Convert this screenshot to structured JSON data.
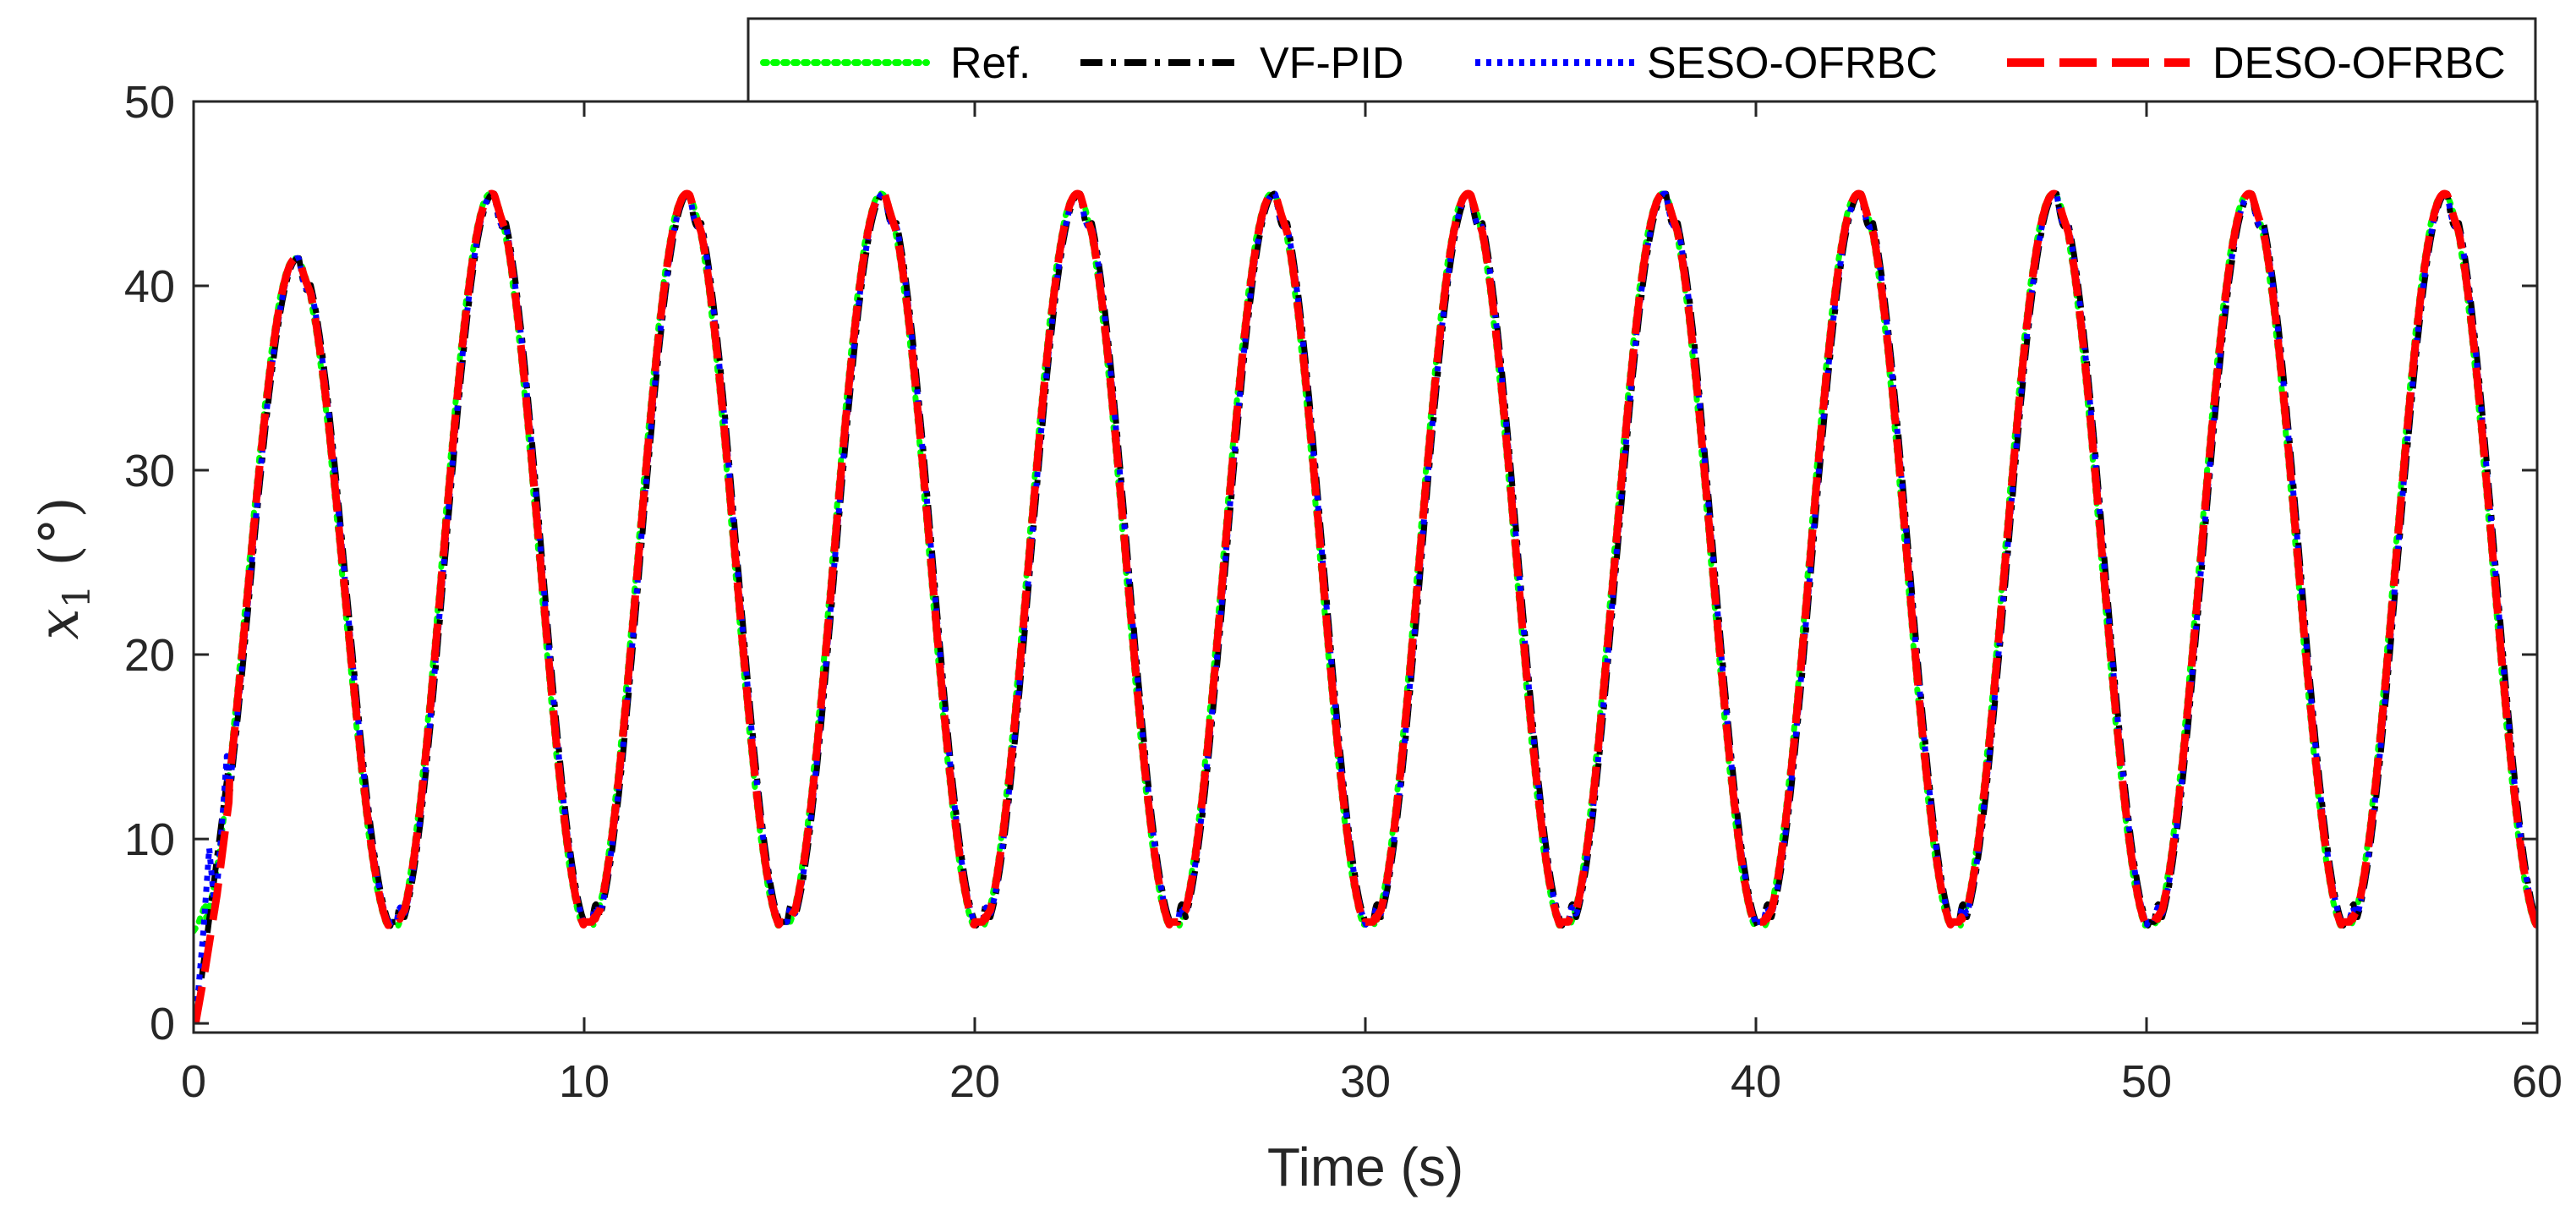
{
  "chart_data": {
    "type": "line",
    "title": "",
    "xlabel": "Time (s)",
    "ylabel": {
      "symbol": "x",
      "subscript": "1",
      "unit": "(°)"
    },
    "xlim": [
      0,
      60
    ],
    "ylim": [
      -0.5,
      50
    ],
    "xticks": [
      0,
      10,
      20,
      30,
      40,
      50,
      60
    ],
    "yticks": [
      0,
      10,
      20,
      30,
      40,
      50
    ],
    "xtick_labels": [
      "0",
      "10",
      "20",
      "30",
      "40",
      "50",
      "60"
    ],
    "ytick_labels": [
      "0",
      "10",
      "20",
      "30",
      "40",
      "50"
    ],
    "grid": false,
    "legend_location": "top-right, above axes",
    "signal_model": {
      "description": "Periodic reference, period 5 s, oscillating between about 5 and 45 degrees; first cycle peaks near 41.5",
      "period": 5,
      "min": 5,
      "max": 45,
      "first_peak": 41.5,
      "peak_times": [
        2.7,
        7.6,
        12.6,
        17.6,
        22.6,
        27.6,
        32.6,
        37.6,
        42.6,
        47.6,
        52.6,
        57.6
      ],
      "trough_times": [
        5.1,
        10.1,
        15.1,
        20.1,
        25.1,
        30.1,
        35.1,
        40.1,
        45.1,
        50.1,
        55.1
      ]
    },
    "series": [
      {
        "name": "Ref.",
        "color": "#00ff00",
        "style": "dotted",
        "startup_points": [
          [
            0,
            5
          ],
          [
            0.1,
            5.3
          ],
          [
            0.3,
            6.5
          ]
        ]
      },
      {
        "name": "VF-PID",
        "color": "#000000",
        "style": "dash-dot",
        "startup_points": [
          [
            0.05,
            0
          ],
          [
            0.3,
            4
          ],
          [
            0.6,
            9
          ],
          [
            0.9,
            14
          ]
        ]
      },
      {
        "name": "SESO-OFRBC",
        "color": "#0000ff",
        "style": "dotted",
        "startup_points": [
          [
            0.05,
            0
          ],
          [
            0.25,
            5
          ],
          [
            0.4,
            9.5
          ],
          [
            0.55,
            6
          ],
          [
            0.7,
            10
          ],
          [
            0.85,
            14.5
          ]
        ]
      },
      {
        "name": "DESO-OFRBC",
        "color": "#ff0000",
        "style": "dashed",
        "startup_points": [
          [
            0.05,
            0
          ],
          [
            0.3,
            3
          ],
          [
            0.6,
            7
          ],
          [
            0.9,
            12
          ]
        ]
      }
    ]
  }
}
